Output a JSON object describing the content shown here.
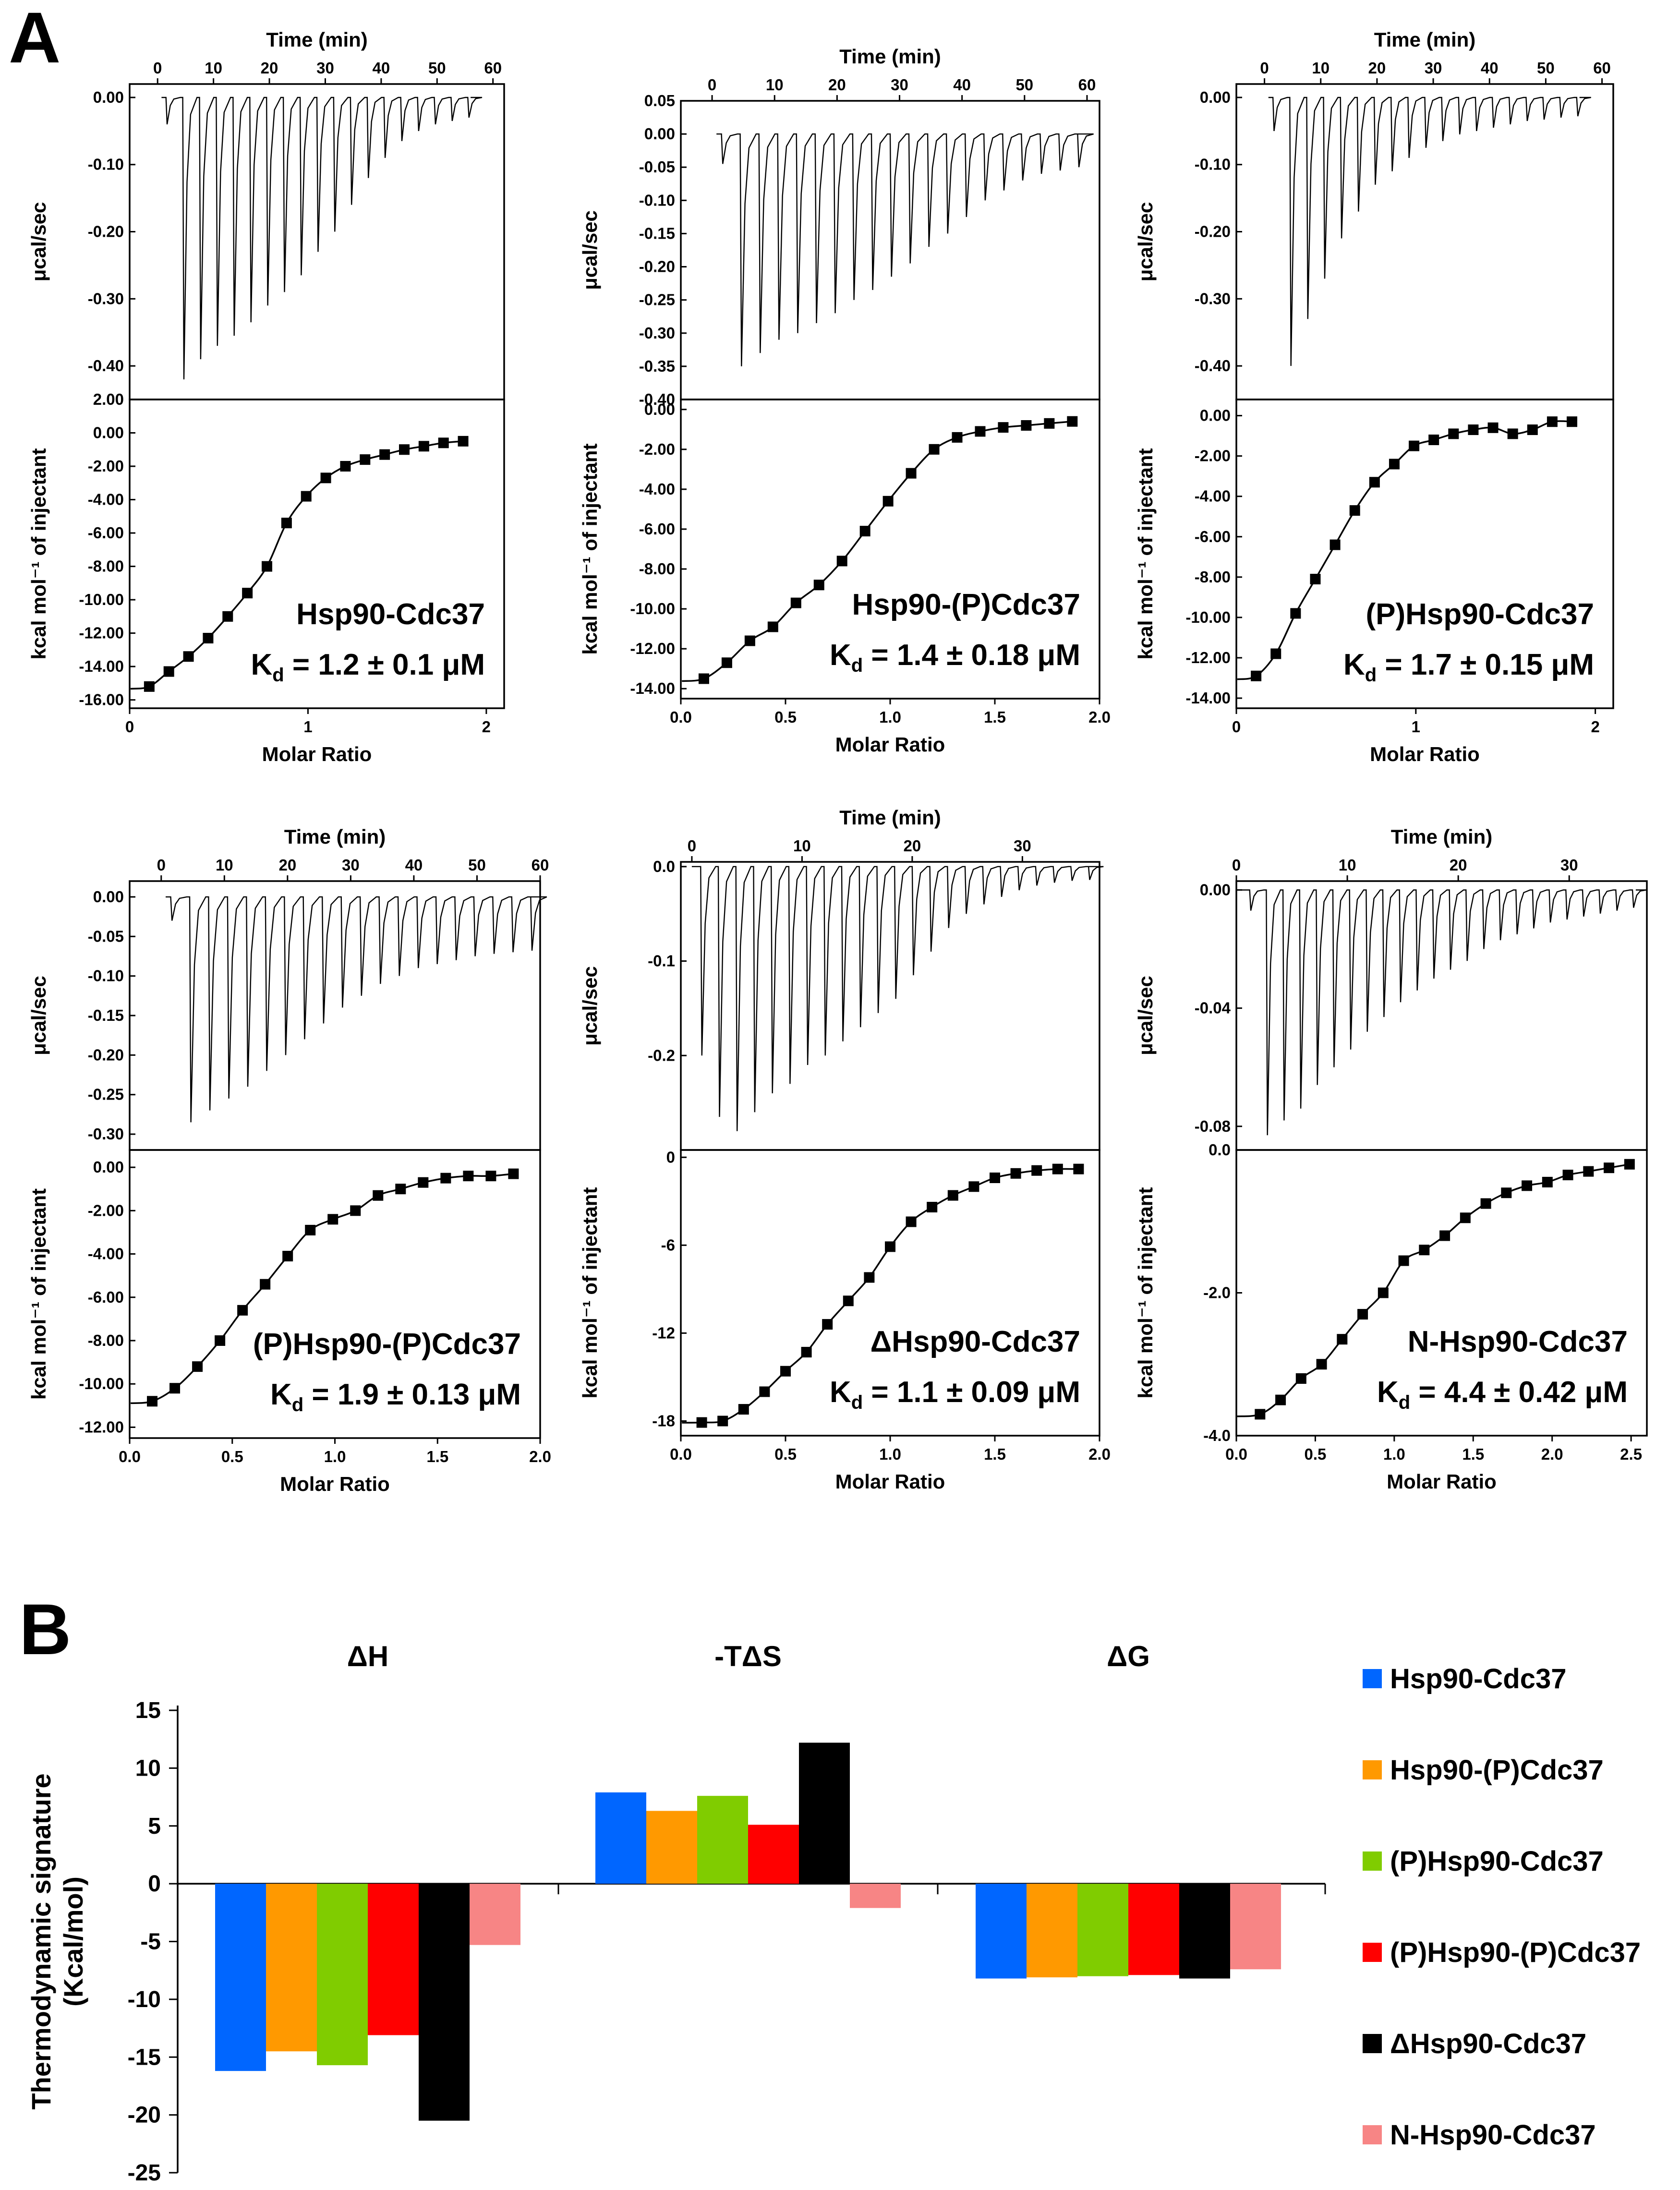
{
  "figure": {
    "panel_a_label": "A",
    "panel_b_label": "B",
    "colors": {
      "Hsp90-Cdc37": "#0066ff",
      "Hsp90-(P)Cdc37": "#ff9900",
      "(P)Hsp90-Cdc37": "#80cc00",
      "(P)Hsp90-(P)Cdc37": "#ff0000",
      "ΔHsp90-Cdc37": "#000000",
      "N-Hsp90-Cdc37": "#f78585"
    }
  },
  "chart_data": [
    {
      "type": "line",
      "panel": "A1",
      "name": "Hsp90-Cdc37",
      "title_line1": "Hsp90-Cdc37",
      "title_line2": "K_d = 1.2 ± 0.1 μM",
      "kd_prefix": "K",
      "kd_sub": "d",
      "kd_value": " = 1.2 ± 0.1 μM",
      "raw": {
        "xlabel": "Time (min)",
        "ylabel": "μcal/sec",
        "xlim": [
          -5,
          62
        ],
        "ylim": [
          -0.45,
          0.02
        ],
        "xticks": [
          "0",
          "10",
          "20",
          "30",
          "40",
          "50",
          "60"
        ],
        "yticks": [
          "0.00",
          "-0.10",
          "-0.20",
          "-0.30",
          "-0.40"
        ],
        "inj_start": 1.5,
        "inj_interval": 3.0,
        "inj_count": 18,
        "trace_end": 56,
        "peak_first": 0.04,
        "peaks": [
          0.42,
          0.39,
          0.37,
          0.355,
          0.335,
          0.31,
          0.29,
          0.265,
          0.23,
          0.2,
          0.16,
          0.12,
          0.09,
          0.065,
          0.05,
          0.04,
          0.035,
          0.03
        ]
      },
      "itc": {
        "xlabel": "Molar Ratio",
        "ylabel": "kcal mol⁻¹ of injectant",
        "xlim": [
          0,
          2.1
        ],
        "ylim": [
          -16.5,
          2.0
        ],
        "xticks": [
          "0",
          "1",
          "2"
        ],
        "yticks": [
          "2.00",
          "0.00",
          "-2.00",
          "-4.00",
          "-6.00",
          "-8.00",
          "-10.00",
          "-12.00",
          "-14.00",
          "-16.00"
        ],
        "x": [
          0.11,
          0.22,
          0.33,
          0.44,
          0.55,
          0.66,
          0.77,
          0.88,
          0.99,
          1.1,
          1.21,
          1.32,
          1.43,
          1.54,
          1.65,
          1.76,
          1.87
        ],
        "y": [
          -15.2,
          -14.3,
          -13.4,
          -12.3,
          -11.0,
          -9.6,
          -8.0,
          -5.4,
          -3.8,
          -2.7,
          -2.0,
          -1.6,
          -1.3,
          -1.0,
          -0.8,
          -0.6,
          -0.5
        ]
      }
    },
    {
      "type": "line",
      "panel": "A2",
      "name": "Hsp90-(P)Cdc37",
      "title_line1": "Hsp90-(P)Cdc37",
      "title_line2": "K_d = 1.4 ± 0.18 μM",
      "kd_prefix": "K",
      "kd_sub": "d",
      "kd_value": " = 1.4 ± 0.18 μM",
      "raw": {
        "xlabel": "Time (min)",
        "ylabel": "μcal/sec",
        "xlim": [
          -5,
          62
        ],
        "ylim": [
          -0.4,
          0.05
        ],
        "xticks": [
          "0",
          "10",
          "20",
          "30",
          "40",
          "50",
          "60"
        ],
        "yticks": [
          "0.05",
          "0.00",
          "-0.05",
          "-0.10",
          "-0.15",
          "-0.20",
          "-0.25",
          "-0.30",
          "-0.35",
          "-0.40"
        ],
        "inj_start": 1.5,
        "inj_interval": 3.0,
        "inj_count": 19,
        "trace_end": 58,
        "peak_first": 0.045,
        "peaks": [
          0.35,
          0.33,
          0.31,
          0.3,
          0.285,
          0.27,
          0.25,
          0.235,
          0.215,
          0.195,
          0.17,
          0.15,
          0.125,
          0.1,
          0.085,
          0.07,
          0.06,
          0.055,
          0.05
        ]
      },
      "itc": {
        "xlabel": "Molar Ratio",
        "ylabel": "kcal mol⁻¹ of injectant",
        "xlim": [
          0,
          2.0
        ],
        "ylim": [
          -14.5,
          0.5
        ],
        "xticks": [
          "0.0",
          "0.5",
          "1.0",
          "1.5",
          "2.0"
        ],
        "yticks": [
          "0.00",
          "-2.00",
          "-4.00",
          "-6.00",
          "-8.00",
          "-10.00",
          "-12.00",
          "-14.00"
        ],
        "x": [
          0.11,
          0.22,
          0.33,
          0.44,
          0.55,
          0.66,
          0.77,
          0.88,
          0.99,
          1.1,
          1.21,
          1.32,
          1.43,
          1.54,
          1.65,
          1.76,
          1.87
        ],
        "y": [
          -13.5,
          -12.7,
          -11.6,
          -10.9,
          -9.7,
          -8.8,
          -7.6,
          -6.1,
          -4.6,
          -3.2,
          -2.0,
          -1.4,
          -1.1,
          -0.9,
          -0.8,
          -0.7,
          -0.6
        ]
      }
    },
    {
      "type": "line",
      "panel": "A3",
      "name": "(P)Hsp90-Cdc37",
      "title_line1": "(P)Hsp90-Cdc37",
      "title_line2": "K_d = 1.7 ± 0.15 μM",
      "kd_prefix": "K",
      "kd_sub": "d",
      "kd_value": " = 1.7 ± 0.15 μM",
      "raw": {
        "xlabel": "Time (min)",
        "ylabel": "μcal/sec",
        "xlim": [
          -5,
          62
        ],
        "ylim": [
          -0.45,
          0.02
        ],
        "xticks": [
          "0",
          "10",
          "20",
          "30",
          "40",
          "50",
          "60"
        ],
        "yticks": [
          "0.00",
          "-0.10",
          "-0.20",
          "-0.30",
          "-0.40"
        ],
        "inj_start": 1.5,
        "inj_interval": 3.0,
        "inj_count": 18,
        "trace_end": 56,
        "peak_first": 0.05,
        "peaks": [
          0.4,
          0.33,
          0.27,
          0.21,
          0.17,
          0.13,
          0.11,
          0.09,
          0.075,
          0.065,
          0.055,
          0.05,
          0.045,
          0.04,
          0.035,
          0.033,
          0.03,
          0.028
        ]
      },
      "itc": {
        "xlabel": "Molar Ratio",
        "ylabel": "kcal mol⁻¹ of injectant",
        "xlim": [
          0,
          2.1
        ],
        "ylim": [
          -14.5,
          0.8
        ],
        "xticks": [
          "0",
          "1",
          "2"
        ],
        "yticks": [
          "0.00",
          "-2.00",
          "-4.00",
          "-6.00",
          "-8.00",
          "-10.00",
          "-12.00",
          "-14.00"
        ],
        "x": [
          0.11,
          0.22,
          0.33,
          0.44,
          0.55,
          0.66,
          0.77,
          0.88,
          0.99,
          1.1,
          1.21,
          1.32,
          1.43,
          1.54,
          1.65,
          1.76,
          1.87
        ],
        "y": [
          -12.9,
          -11.8,
          -9.8,
          -8.1,
          -6.4,
          -4.7,
          -3.3,
          -2.4,
          -1.5,
          -1.2,
          -0.9,
          -0.7,
          -0.6,
          -0.9,
          -0.7,
          -0.3,
          -0.3
        ]
      }
    },
    {
      "type": "line",
      "panel": "A4",
      "name": "(P)Hsp90-(P)Cdc37",
      "title_line1": "(P)Hsp90-(P)Cdc37",
      "title_line2": "K_d = 1.9 ± 0.13 μM",
      "kd_prefix": "K",
      "kd_sub": "d",
      "kd_value": " = 1.9 ± 0.13 μM",
      "raw": {
        "xlabel": "Time (min)",
        "ylabel": "μcal/sec",
        "xlim": [
          -5,
          60
        ],
        "ylim": [
          -0.32,
          0.02
        ],
        "xticks": [
          "0",
          "10",
          "20",
          "30",
          "40",
          "50",
          "60"
        ],
        "yticks": [
          "0.00",
          "-0.05",
          "-0.10",
          "-0.15",
          "-0.20",
          "-0.25",
          "-0.30"
        ],
        "inj_start": 1.5,
        "inj_interval": 3.0,
        "inj_count": 19,
        "trace_end": 58,
        "peak_first": 0.03,
        "peaks": [
          0.285,
          0.27,
          0.255,
          0.24,
          0.22,
          0.2,
          0.18,
          0.16,
          0.14,
          0.125,
          0.11,
          0.1,
          0.09,
          0.085,
          0.08,
          0.075,
          0.072,
          0.07,
          0.068
        ]
      },
      "itc": {
        "xlabel": "Molar Ratio",
        "ylabel": "kcal mol⁻¹ of injectant",
        "xlim": [
          0,
          2.0
        ],
        "ylim": [
          -12.5,
          0.8
        ],
        "xticks": [
          "0.0",
          "0.5",
          "1.0",
          "1.5",
          "2.0"
        ],
        "yticks": [
          "0.00",
          "-2.00",
          "-4.00",
          "-6.00",
          "-8.00",
          "-10.00",
          "-12.00"
        ],
        "x": [
          0.11,
          0.22,
          0.33,
          0.44,
          0.55,
          0.66,
          0.77,
          0.88,
          0.99,
          1.1,
          1.21,
          1.32,
          1.43,
          1.54,
          1.65,
          1.76,
          1.87
        ],
        "y": [
          -10.8,
          -10.2,
          -9.2,
          -8.0,
          -6.6,
          -5.4,
          -4.1,
          -2.9,
          -2.4,
          -2.0,
          -1.3,
          -1.0,
          -0.7,
          -0.5,
          -0.4,
          -0.4,
          -0.3
        ]
      }
    },
    {
      "type": "line",
      "panel": "A5",
      "name": "ΔHsp90-Cdc37",
      "title_line1": "ΔHsp90-Cdc37",
      "title_line2": "K_d = 1.1 ± 0.09 μM",
      "kd_prefix": "K",
      "kd_sub": "d",
      "kd_value": " = 1.1 ± 0.09 μM",
      "raw": {
        "xlabel": "Time (min)",
        "ylabel": "μcal/sec",
        "xlim": [
          -1,
          37
        ],
        "ylim": [
          -0.3,
          0.005
        ],
        "xticks": [
          "0",
          "10",
          "20",
          "30"
        ],
        "yticks": [
          "0.0",
          "-0.1",
          "-0.2"
        ],
        "inj_start": 0.8,
        "inj_interval": 1.6,
        "inj_count": 22,
        "trace_end": 36,
        "peak_first": 0.2,
        "peaks": [
          0.265,
          0.28,
          0.26,
          0.24,
          0.23,
          0.21,
          0.2,
          0.185,
          0.17,
          0.155,
          0.14,
          0.115,
          0.09,
          0.065,
          0.05,
          0.04,
          0.032,
          0.025,
          0.02,
          0.017,
          0.015,
          0.014
        ]
      },
      "itc": {
        "xlabel": "Molar Ratio",
        "ylabel": "kcal mol⁻¹ of injectant",
        "xlim": [
          0,
          2.0
        ],
        "ylim": [
          -19.0,
          0.5
        ],
        "xticks": [
          "0.0",
          "0.5",
          "1.0",
          "1.5",
          "2.0"
        ],
        "yticks": [
          "0",
          "-6",
          "-12",
          "-18"
        ],
        "x": [
          0.1,
          0.2,
          0.3,
          0.4,
          0.5,
          0.6,
          0.7,
          0.8,
          0.9,
          1.0,
          1.1,
          1.2,
          1.3,
          1.4,
          1.5,
          1.6,
          1.7,
          1.8,
          1.9
        ],
        "y": [
          -18.1,
          -18.0,
          -17.2,
          -16.0,
          -14.6,
          -13.3,
          -11.4,
          -9.8,
          -8.2,
          -6.1,
          -4.4,
          -3.4,
          -2.6,
          -2.0,
          -1.4,
          -1.1,
          -0.9,
          -0.8,
          -0.8
        ]
      }
    },
    {
      "type": "line",
      "panel": "A6",
      "name": "N-Hsp90-Cdc37",
      "title_line1": "N-Hsp90-Cdc37",
      "title_line2": "K_d = 4.4 ± 0.42 μM",
      "kd_prefix": "K",
      "kd_sub": "d",
      "kd_value": " = 4.4 ± 0.42 μM",
      "raw": {
        "xlabel": "Time (min)",
        "ylabel": "μcal/sec",
        "xlim": [
          0,
          37
        ],
        "ylim": [
          -0.088,
          0.003
        ],
        "xticks": [
          "0",
          "10",
          "20",
          "30"
        ],
        "yticks": [
          "0.00",
          "-0.04",
          "-0.08"
        ],
        "inj_start": 1.2,
        "inj_interval": 1.5,
        "inj_count": 23,
        "trace_end": 36,
        "peak_first": 0.007,
        "peaks": [
          0.083,
          0.078,
          0.074,
          0.066,
          0.06,
          0.054,
          0.048,
          0.043,
          0.038,
          0.034,
          0.03,
          0.027,
          0.024,
          0.02,
          0.017,
          0.015,
          0.013,
          0.011,
          0.01,
          0.009,
          0.008,
          0.007,
          0.006
        ]
      },
      "itc": {
        "xlabel": "Molar Ratio",
        "ylabel": "kcal mol⁻¹ of injectant",
        "xlim": [
          0,
          2.6
        ],
        "ylim": [
          -4.0,
          0.0
        ],
        "xticks": [
          "0.0",
          "0.5",
          "1.0",
          "1.5",
          "2.0",
          "2.5"
        ],
        "yticks": [
          "0.0",
          "-2.0",
          "-4.0"
        ],
        "x": [
          0.15,
          0.28,
          0.41,
          0.54,
          0.67,
          0.8,
          0.93,
          1.06,
          1.19,
          1.32,
          1.45,
          1.58,
          1.71,
          1.84,
          1.97,
          2.1,
          2.23,
          2.36,
          2.49
        ],
        "y": [
          -3.7,
          -3.5,
          -3.2,
          -3.0,
          -2.65,
          -2.3,
          -2.0,
          -1.55,
          -1.4,
          -1.2,
          -0.95,
          -0.75,
          -0.6,
          -0.5,
          -0.45,
          -0.35,
          -0.3,
          -0.25,
          -0.2
        ]
      }
    },
    {
      "type": "bar",
      "panel": "B",
      "title": "",
      "categories": [
        "ΔH",
        "-TΔS",
        "ΔG"
      ],
      "ylabel_line1": "Thermodynamic signature",
      "ylabel_line2": "(Kcal/mol)",
      "ylim": [
        -25,
        15
      ],
      "yticks": [
        "15",
        "10",
        "5",
        "0",
        "-5",
        "-10",
        "-15",
        "-20",
        "-25"
      ],
      "legend_position": "right",
      "series": [
        {
          "name": "Hsp90-Cdc37",
          "values": [
            -16.2,
            7.9,
            -8.2
          ]
        },
        {
          "name": "Hsp90-(P)Cdc37",
          "values": [
            -14.5,
            6.3,
            -8.1
          ]
        },
        {
          "name": "(P)Hsp90-Cdc37",
          "values": [
            -15.7,
            7.6,
            -8.0
          ]
        },
        {
          "name": "(P)Hsp90-(P)Cdc37",
          "values": [
            -13.1,
            5.1,
            -7.9
          ]
        },
        {
          "name": "ΔHsp90-Cdc37",
          "values": [
            -20.5,
            12.2,
            -8.2
          ]
        },
        {
          "name": "N-Hsp90-Cdc37",
          "values": [
            -5.3,
            -2.1,
            -7.4
          ]
        }
      ]
    }
  ]
}
